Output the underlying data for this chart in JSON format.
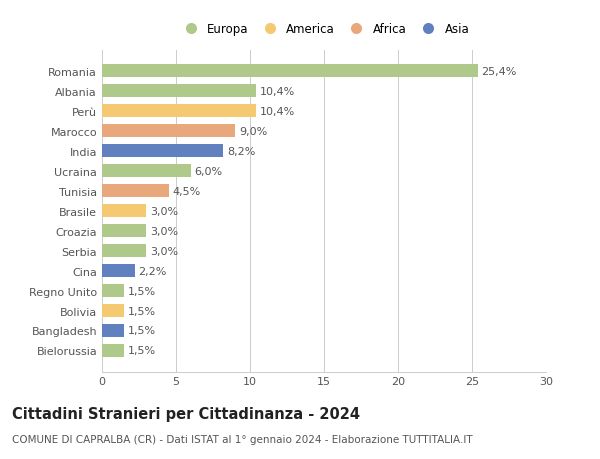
{
  "countries": [
    "Romania",
    "Albania",
    "Perù",
    "Marocco",
    "India",
    "Ucraina",
    "Tunisia",
    "Brasile",
    "Croazia",
    "Serbia",
    "Cina",
    "Regno Unito",
    "Bolivia",
    "Bangladesh",
    "Bielorussia"
  ],
  "values": [
    25.4,
    10.4,
    10.4,
    9.0,
    8.2,
    6.0,
    4.5,
    3.0,
    3.0,
    3.0,
    2.2,
    1.5,
    1.5,
    1.5,
    1.5
  ],
  "labels": [
    "25,4%",
    "10,4%",
    "10,4%",
    "9,0%",
    "8,2%",
    "6,0%",
    "4,5%",
    "3,0%",
    "3,0%",
    "3,0%",
    "2,2%",
    "1,5%",
    "1,5%",
    "1,5%",
    "1,5%"
  ],
  "colors": [
    "#aec98a",
    "#aec98a",
    "#f5c872",
    "#e8a87c",
    "#6080c0",
    "#aec98a",
    "#e8a87c",
    "#f5c872",
    "#aec98a",
    "#aec98a",
    "#6080c0",
    "#aec98a",
    "#f5c872",
    "#6080c0",
    "#aec98a"
  ],
  "legend_labels": [
    "Europa",
    "America",
    "Africa",
    "Asia"
  ],
  "legend_colors": [
    "#aec98a",
    "#f5c872",
    "#e8a87c",
    "#6080c0"
  ],
  "xlim": [
    0,
    30
  ],
  "xticks": [
    0,
    5,
    10,
    15,
    20,
    25,
    30
  ],
  "title": "Cittadini Stranieri per Cittadinanza - 2024",
  "subtitle": "COMUNE DI CAPRALBA (CR) - Dati ISTAT al 1° gennaio 2024 - Elaborazione TUTTITALIA.IT",
  "bg_color": "#ffffff",
  "grid_color": "#cccccc",
  "bar_height": 0.65,
  "label_fontsize": 8,
  "tick_fontsize": 8,
  "title_fontsize": 10.5,
  "subtitle_fontsize": 7.5
}
